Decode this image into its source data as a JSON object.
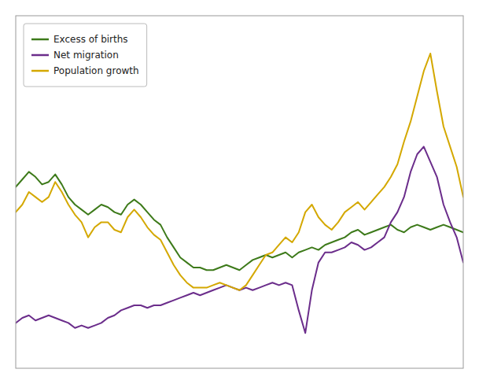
{
  "chart_data": {
    "type": "line",
    "series": [
      {
        "name": "Excess of births",
        "color": "#3d7a1a",
        "values": [
          72,
          75,
          78,
          76,
          73,
          74,
          77,
          73,
          68,
          65,
          63,
          61,
          63,
          65,
          64,
          62,
          61,
          65,
          67,
          65,
          62,
          59,
          57,
          52,
          48,
          44,
          42,
          40,
          40,
          39,
          39,
          40,
          41,
          40,
          39,
          41,
          43,
          44,
          45,
          44,
          45,
          46,
          44,
          46,
          47,
          48,
          47,
          49,
          50,
          51,
          52,
          54,
          55,
          53,
          54,
          55,
          56,
          57,
          55,
          54,
          56,
          57,
          56,
          55,
          56,
          57,
          56,
          55,
          54
        ]
      },
      {
        "name": "Net migration",
        "color": "#6b2d8b",
        "values": [
          18,
          20,
          21,
          19,
          20,
          21,
          20,
          19,
          18,
          16,
          17,
          16,
          17,
          18,
          20,
          21,
          23,
          24,
          25,
          25,
          24,
          25,
          25,
          26,
          27,
          28,
          29,
          30,
          29,
          30,
          31,
          32,
          33,
          32,
          31,
          32,
          31,
          32,
          33,
          34,
          33,
          34,
          33,
          23,
          14,
          31,
          42,
          46,
          46,
          47,
          48,
          50,
          49,
          47,
          48,
          50,
          52,
          58,
          62,
          68,
          78,
          85,
          88,
          82,
          76,
          65,
          58,
          52,
          42
        ]
      },
      {
        "name": "Population growth",
        "color": "#d4a800",
        "values": [
          62,
          65,
          70,
          68,
          66,
          68,
          74,
          70,
          65,
          61,
          58,
          52,
          56,
          58,
          58,
          55,
          54,
          60,
          63,
          60,
          56,
          53,
          51,
          46,
          41,
          37,
          34,
          32,
          32,
          32,
          33,
          34,
          33,
          32,
          31,
          33,
          37,
          41,
          45,
          46,
          49,
          52,
          50,
          54,
          62,
          65,
          60,
          57,
          55,
          58,
          62,
          64,
          66,
          63,
          66,
          69,
          72,
          76,
          81,
          90,
          98,
          108,
          118,
          125,
          110,
          96,
          88,
          80,
          68
        ]
      }
    ],
    "ylim": [
      0,
      140
    ],
    "grid": false,
    "tick_labels": false,
    "legend": "upper left"
  }
}
